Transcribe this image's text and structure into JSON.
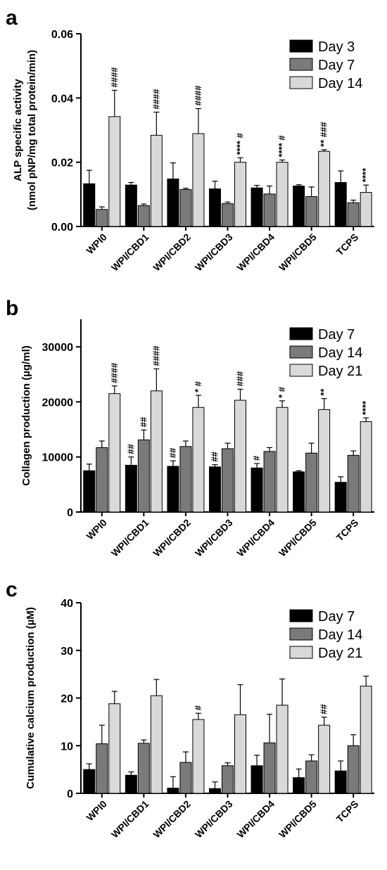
{
  "chart_data": [
    {
      "type": "bar",
      "panel": "a",
      "ylabel": [
        "ALP specific activity",
        "(nmol pNP/mg total protein/min)"
      ],
      "ylim": [
        0,
        0.06
      ],
      "yticks": [
        "0.00",
        "0.02",
        "0.04",
        "0.06"
      ],
      "categories": [
        "WPI0",
        "WPI/CBD1",
        "WPI/CBD2",
        "WPI/CBD3",
        "WPI/CBD4",
        "WPI/CBD5",
        "TCPS"
      ],
      "legend_position": "top-right",
      "series": [
        {
          "name": "Day 3",
          "color": "#000000",
          "values": [
            0.0133,
            0.0129,
            0.0148,
            0.0117,
            0.012,
            0.0126,
            0.0137
          ],
          "errors": [
            0.0042,
            0.0008,
            0.005,
            0.0024,
            0.0008,
            0.0004,
            0.0036
          ],
          "annotations": [
            "",
            "",
            "",
            "",
            "",
            "",
            ""
          ]
        },
        {
          "name": "Day 7",
          "color": "#7a7a7a",
          "values": [
            0.0053,
            0.0065,
            0.0115,
            0.0071,
            0.0101,
            0.0093,
            0.0074
          ],
          "errors": [
            0.0008,
            0.0005,
            0.0004,
            0.0005,
            0.0025,
            0.003,
            0.0008
          ],
          "annotations": [
            "",
            "",
            "",
            "",
            "",
            "",
            ""
          ]
        },
        {
          "name": "Day 14",
          "color": "#d9d9d9",
          "values": [
            0.0342,
            0.0284,
            0.0289,
            0.02,
            0.02,
            0.0234,
            0.0106
          ],
          "errors": [
            0.0082,
            0.0072,
            0.0078,
            0.0014,
            0.0007,
            0.0005,
            0.0023
          ],
          "annotations": [
            "####",
            "####",
            "####",
            "**** #",
            "**** #",
            "** ###",
            "****"
          ]
        }
      ]
    },
    {
      "type": "bar",
      "panel": "b",
      "ylabel": [
        "Collagen production (µg/ml)"
      ],
      "ylim": [
        0,
        35000
      ],
      "yticks": [
        "0",
        "10000",
        "20000",
        "30000"
      ],
      "categories": [
        "WPI0",
        "WPI/CBD1",
        "WPI/CBD2",
        "WPI/CBD3",
        "WPI/CBD4",
        "WPI/CBD5",
        "TCPS"
      ],
      "legend_position": "top-right",
      "series": [
        {
          "name": "Day 7",
          "color": "#000000",
          "values": [
            7500,
            8500,
            8300,
            8200,
            8000,
            7300,
            5400
          ],
          "errors": [
            1200,
            1500,
            1000,
            400,
            800,
            200,
            1000
          ],
          "annotations": [
            "",
            "##",
            "##",
            "##",
            "#",
            "",
            ""
          ]
        },
        {
          "name": "Day 14",
          "color": "#7a7a7a",
          "values": [
            11700,
            13100,
            11900,
            11500,
            11000,
            10700,
            10300
          ],
          "errors": [
            1200,
            1800,
            1000,
            1000,
            700,
            1800,
            800
          ],
          "annotations": [
            "",
            "##",
            "",
            "",
            "",
            "",
            ""
          ]
        },
        {
          "name": "Day 21",
          "color": "#d9d9d9",
          "values": [
            21500,
            22000,
            19000,
            20300,
            19000,
            18600,
            16400
          ],
          "errors": [
            1400,
            4000,
            2200,
            2000,
            1200,
            2000,
            700
          ],
          "annotations": [
            "####",
            "####",
            "* #",
            "###",
            "* #",
            "**",
            "****"
          ]
        }
      ]
    },
    {
      "type": "bar",
      "panel": "c",
      "ylabel": [
        "Cumulative calcium production (µM)"
      ],
      "ylim": [
        0,
        40
      ],
      "yticks": [
        "0",
        "10",
        "20",
        "30",
        "40"
      ],
      "categories": [
        "WPI0",
        "WPI/CBD1",
        "WPI/CBD2",
        "WPI/CBD3",
        "WPI/CBD4",
        "WPI/CBD5",
        "TCPS"
      ],
      "legend_position": "top-right",
      "series": [
        {
          "name": "Day 7",
          "color": "#000000",
          "values": [
            5.0,
            3.8,
            1.1,
            1.0,
            5.8,
            3.3,
            4.7
          ],
          "errors": [
            1.2,
            0.7,
            2.4,
            1.4,
            2.2,
            1.8,
            2.1
          ],
          "annotations": [
            "",
            "",
            "",
            "",
            "",
            "",
            ""
          ]
        },
        {
          "name": "Day 14",
          "color": "#7a7a7a",
          "values": [
            10.4,
            10.5,
            6.5,
            5.8,
            10.6,
            6.8,
            10.0
          ],
          "errors": [
            3.9,
            0.7,
            2.2,
            0.6,
            6.0,
            1.3,
            2.3
          ],
          "annotations": [
            "",
            "",
            "",
            "",
            "",
            "",
            ""
          ]
        },
        {
          "name": "Day 21",
          "color": "#d9d9d9",
          "values": [
            18.8,
            20.5,
            15.5,
            16.5,
            18.5,
            14.3,
            22.5
          ],
          "errors": [
            2.6,
            3.4,
            1.3,
            6.3,
            5.5,
            1.7,
            2.1
          ],
          "annotations": [
            "",
            "",
            "#",
            "",
            "",
            "##",
            ""
          ]
        }
      ]
    }
  ],
  "panel_letters": [
    "a",
    "b",
    "c"
  ]
}
